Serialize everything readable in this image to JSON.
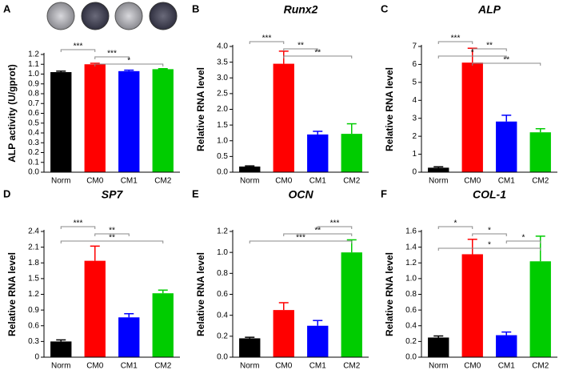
{
  "chart_data": [
    {
      "type": "bar",
      "panel": "A",
      "ylabel": "ALP activity (U/gprot)",
      "categories": [
        "Norm",
        "CM0",
        "CM1",
        "CM2"
      ],
      "values": [
        1.02,
        1.1,
        1.03,
        1.05
      ],
      "errors": [
        0.01,
        0.01,
        0.01,
        0.005
      ],
      "colors": [
        "#000000",
        "#ff0000",
        "#0000ff",
        "#00cc00"
      ],
      "ylim": [
        0,
        1.2
      ],
      "yticks": [
        {
          "value": 0,
          "label": "0.0"
        },
        0.1,
        0.2,
        0.3,
        0.4,
        0.5,
        0.6,
        0.7,
        0.8,
        0.9,
        {
          "value": 1,
          "label": "1.0"
        },
        1.1,
        1.2
      ],
      "significance": [
        {
          "from": 0,
          "to": 1,
          "label": "***"
        },
        {
          "from": 1,
          "to": 2,
          "label": "***"
        },
        {
          "from": 1,
          "to": 3,
          "label": "*"
        }
      ]
    },
    {
      "type": "bar",
      "panel": "B",
      "title": "Runx2",
      "ylabel": "Relative RNA level",
      "categories": [
        "Norm",
        "CM0",
        "CM1",
        "CM2"
      ],
      "values": [
        0.18,
        3.45,
        1.2,
        1.22
      ],
      "errors": [
        0.02,
        0.4,
        0.1,
        0.32
      ],
      "colors": [
        "#000000",
        "#ff0000",
        "#0000ff",
        "#00cc00"
      ],
      "ylim": [
        0,
        4
      ],
      "yticks": [
        {
          "value": 0,
          "label": "0.0"
        },
        0.5,
        {
          "value": 1,
          "label": "1.0"
        },
        1.5,
        {
          "value": 2,
          "label": "2.0"
        },
        2.5,
        {
          "value": 3,
          "label": "3.0"
        },
        3.5,
        {
          "value": 4,
          "label": "4.0"
        }
      ],
      "significance": [
        {
          "from": 0,
          "to": 1,
          "label": "***"
        },
        {
          "from": 1,
          "to": 2,
          "label": "**"
        },
        {
          "from": 1,
          "to": 3,
          "label": "**"
        }
      ]
    },
    {
      "type": "bar",
      "panel": "C",
      "title": "ALP",
      "ylabel": "Relative RNA level",
      "categories": [
        "Norm",
        "CM0",
        "CM1",
        "CM2"
      ],
      "values": [
        0.25,
        6.1,
        2.82,
        2.22
      ],
      "errors": [
        0.05,
        0.8,
        0.35,
        0.2
      ],
      "colors": [
        "#000000",
        "#ff0000",
        "#0000ff",
        "#00cc00"
      ],
      "ylim": [
        0,
        7
      ],
      "yticks": [
        0,
        1,
        2,
        3,
        4,
        5,
        6,
        7
      ],
      "significance": [
        {
          "from": 0,
          "to": 1,
          "label": "***"
        },
        {
          "from": 1,
          "to": 2,
          "label": "**"
        },
        {
          "from": 0,
          "to": 2,
          "label": "*"
        },
        {
          "from": 1,
          "to": 3,
          "label": "**"
        }
      ]
    },
    {
      "type": "bar",
      "panel": "D",
      "title": "SP7",
      "ylabel": "Relative RNA level",
      "categories": [
        "Norm",
        "CM0",
        "CM1",
        "CM2"
      ],
      "values": [
        0.3,
        1.84,
        0.76,
        1.22
      ],
      "errors": [
        0.03,
        0.28,
        0.07,
        0.06
      ],
      "colors": [
        "#000000",
        "#ff0000",
        "#0000ff",
        "#00cc00"
      ],
      "ylim": [
        0,
        2.4
      ],
      "yticks": [
        0,
        0.3,
        0.6,
        0.9,
        1.2,
        1.5,
        1.8,
        2.1,
        2.4
      ],
      "significance": [
        {
          "from": 0,
          "to": 1,
          "label": "***"
        },
        {
          "from": 1,
          "to": 2,
          "label": "**"
        },
        {
          "from": 0,
          "to": 3,
          "label": "**"
        }
      ]
    },
    {
      "type": "bar",
      "panel": "E",
      "title": "OCN",
      "ylabel": "Relative RNA level",
      "categories": [
        "Norm",
        "CM0",
        "CM1",
        "CM2"
      ],
      "values": [
        0.18,
        0.45,
        0.3,
        1.0
      ],
      "errors": [
        0.01,
        0.07,
        0.05,
        0.12
      ],
      "colors": [
        "#000000",
        "#ff0000",
        "#0000ff",
        "#00cc00"
      ],
      "ylim": [
        0,
        1.2
      ],
      "yticks": [
        {
          "value": 0,
          "label": "0.0"
        },
        0.2,
        0.4,
        0.6,
        0.8,
        {
          "value": 1,
          "label": "1.0"
        },
        1.2
      ],
      "significance": [
        {
          "from": 2,
          "to": 3,
          "label": "***"
        },
        {
          "from": 1,
          "to": 3,
          "label": "**"
        },
        {
          "from": 0,
          "to": 3,
          "label": "***"
        }
      ]
    },
    {
      "type": "bar",
      "panel": "F",
      "title": "COL-1",
      "ylabel": "Relative RNA level",
      "categories": [
        "Norm",
        "CM0",
        "CM1",
        "CM2"
      ],
      "values": [
        0.25,
        1.31,
        0.28,
        1.22
      ],
      "errors": [
        0.02,
        0.19,
        0.04,
        0.32
      ],
      "colors": [
        "#000000",
        "#ff0000",
        "#0000ff",
        "#00cc00"
      ],
      "ylim": [
        0,
        1.6
      ],
      "yticks": [
        {
          "value": 0,
          "label": "0.0"
        },
        0.2,
        0.4,
        0.6,
        0.8,
        {
          "value": 1,
          "label": "1.0"
        },
        1.2,
        1.4,
        1.6
      ],
      "significance": [
        {
          "from": 0,
          "to": 1,
          "label": "*"
        },
        {
          "from": 1,
          "to": 2,
          "label": "*"
        },
        {
          "from": 2,
          "to": 3,
          "label": "*"
        },
        {
          "from": 0,
          "to": 3,
          "label": "*"
        }
      ]
    }
  ]
}
